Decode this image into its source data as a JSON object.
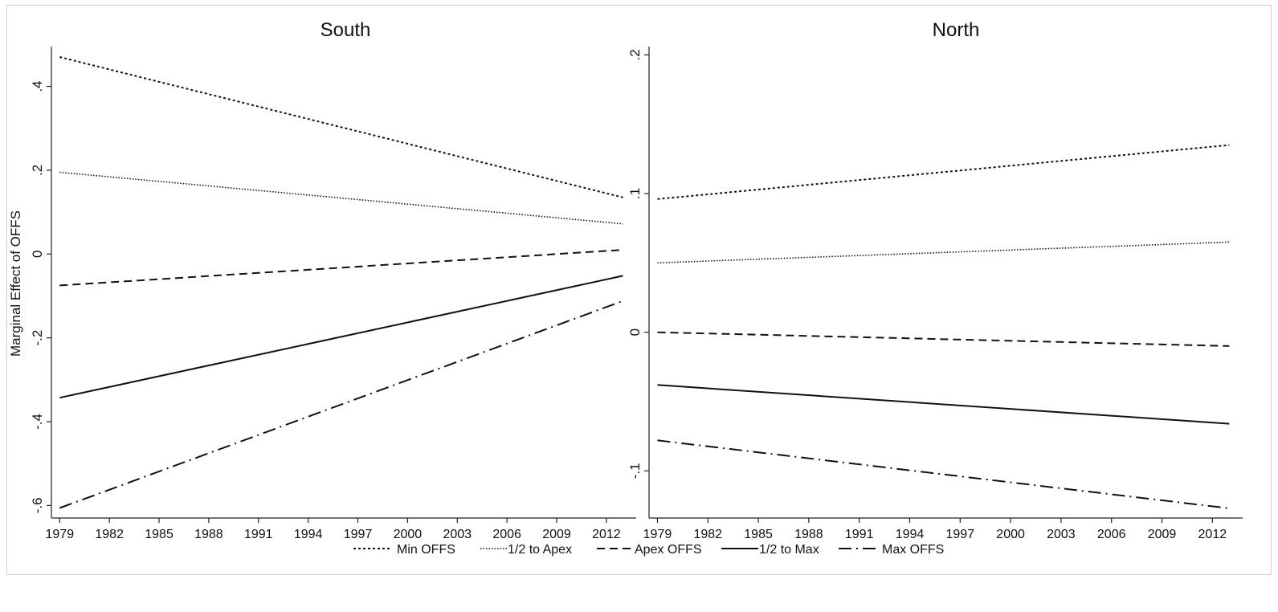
{
  "ylabel": "Marginal Effect of OFFS",
  "legend": [
    {
      "label": "Min OFFS",
      "style": "dense-dots"
    },
    {
      "label": "1/2 to Apex",
      "style": "fine-dots"
    },
    {
      "label": "Apex OFFS",
      "style": "dash"
    },
    {
      "label": "1/2 to Max",
      "style": "solid"
    },
    {
      "label": "Max OFFS",
      "style": "dash-dot"
    }
  ],
  "colors": {
    "line": "#111111",
    "axis": "#222222",
    "border": "#cfcfcf",
    "background": "#ffffff"
  },
  "chart_data": [
    {
      "type": "line",
      "title": "South",
      "xlabel": "",
      "ylabel": "Marginal Effect of OFFS",
      "x": [
        1979,
        2013
      ],
      "xticks": [
        "1979",
        "1982",
        "1985",
        "1988",
        "1991",
        "1994",
        "1997",
        "2000",
        "2003",
        "2006",
        "2009",
        "2012"
      ],
      "yticks": [
        -0.6,
        -0.4,
        -0.2,
        0,
        0.2,
        0.4
      ],
      "ytick_labels": [
        "-.6",
        "-.4",
        "-.2",
        "0",
        ".2",
        ".4"
      ],
      "xlim": [
        1978.5,
        2013.8
      ],
      "ylim": [
        -0.63,
        0.495
      ],
      "series": [
        {
          "name": "Min OFFS",
          "values": [
            0.47,
            0.135
          ]
        },
        {
          "name": "1/2 to Apex",
          "values": [
            0.195,
            0.072
          ]
        },
        {
          "name": "Apex OFFS",
          "values": [
            -0.075,
            0.01
          ]
        },
        {
          "name": "1/2 to Max",
          "values": [
            -0.343,
            -0.052
          ]
        },
        {
          "name": "Max OFFS",
          "values": [
            -0.606,
            -0.112
          ]
        }
      ]
    },
    {
      "type": "line",
      "title": "North",
      "xlabel": "",
      "ylabel": "",
      "x": [
        1979,
        2013
      ],
      "xticks": [
        "1979",
        "1982",
        "1985",
        "1988",
        "1991",
        "1994",
        "1997",
        "2000",
        "2003",
        "2006",
        "2009",
        "2012"
      ],
      "yticks": [
        -0.1,
        0,
        0.1,
        0.2
      ],
      "ytick_labels": [
        "-.1",
        "0",
        ".1",
        ".2"
      ],
      "xlim": [
        1978.5,
        2013.8
      ],
      "ylim": [
        -0.134,
        0.206
      ],
      "series": [
        {
          "name": "Min OFFS",
          "values": [
            0.096,
            0.135
          ]
        },
        {
          "name": "1/2 to Apex",
          "values": [
            0.05,
            0.065
          ]
        },
        {
          "name": "Apex OFFS",
          "values": [
            0.0,
            -0.01
          ]
        },
        {
          "name": "1/2 to Max",
          "values": [
            -0.038,
            -0.066
          ]
        },
        {
          "name": "Max OFFS",
          "values": [
            -0.078,
            -0.127
          ]
        }
      ]
    }
  ]
}
